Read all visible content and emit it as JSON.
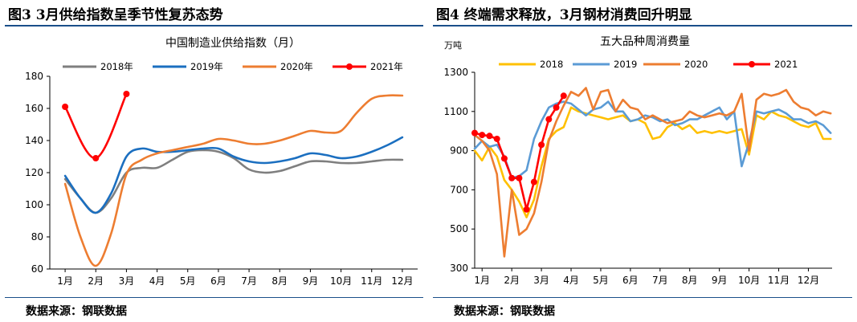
{
  "figures": [
    {
      "title": "图3  3月供给指数呈季节性复苏态势",
      "source": "数据来源：钢联数据"
    },
    {
      "title": "图4  终端需求释放，3月钢材消费回升明显",
      "source": "数据来源：钢联数据"
    }
  ],
  "chart_data": [
    {
      "type": "line",
      "title": "中国制造业供给指数（月）",
      "xlabel": "",
      "ylabel": "",
      "ylim": [
        60,
        180
      ],
      "yticks": [
        60,
        80,
        100,
        120,
        140,
        160,
        180
      ],
      "categories": [
        "1月",
        "2月",
        "3月",
        "4月",
        "5月",
        "6月",
        "7月",
        "8月",
        "9月",
        "10月",
        "11月",
        "12月"
      ],
      "grid": false,
      "legend": "top",
      "series": [
        {
          "name": "2018年",
          "color": "#7f7f7f",
          "markers": false,
          "x": [
            1,
            1.5,
            2,
            2.5,
            3,
            3.5,
            4,
            4.5,
            5,
            5.5,
            6,
            6.5,
            7,
            7.5,
            8,
            8.5,
            9,
            9.5,
            10,
            10.5,
            11,
            11.5,
            12
          ],
          "values": [
            116,
            104,
            95,
            104,
            120,
            123,
            123,
            128,
            133,
            134,
            133,
            129,
            122,
            120,
            121,
            124,
            127,
            127,
            126,
            126,
            127,
            128,
            128
          ]
        },
        {
          "name": "2019年",
          "color": "#1b6fc0",
          "markers": false,
          "x": [
            1,
            1.5,
            2,
            2.5,
            3,
            3.5,
            4,
            4.5,
            5,
            5.5,
            6,
            6.5,
            7,
            7.5,
            8,
            8.5,
            9,
            9.5,
            10,
            10.5,
            11,
            11.5,
            12
          ],
          "values": [
            118,
            104,
            95,
            107,
            130,
            135,
            133,
            133,
            134,
            135,
            135,
            130,
            127,
            126,
            127,
            129,
            132,
            131,
            129,
            130,
            133,
            137,
            142
          ]
        },
        {
          "name": "2020年",
          "color": "#ed7d31",
          "markers": false,
          "x": [
            1,
            1.5,
            2,
            2.5,
            3,
            3.5,
            4,
            4.5,
            5,
            5.5,
            6,
            6.5,
            7,
            7.5,
            8,
            8.5,
            9,
            9.5,
            10,
            10.5,
            11,
            11.5,
            12
          ],
          "values": [
            113,
            80,
            62,
            82,
            119,
            128,
            132,
            134,
            136,
            138,
            141,
            140,
            138,
            138,
            140,
            143,
            146,
            145,
            146,
            157,
            166,
            168,
            168
          ]
        },
        {
          "name": "2021年",
          "color": "#ff0000",
          "markers": true,
          "x": [
            1,
            2,
            3
          ],
          "values": [
            161,
            129,
            169
          ]
        }
      ]
    },
    {
      "type": "line",
      "title": "五大品种周消费量",
      "ylabel": "万吨",
      "xlabel": "",
      "ylim": [
        300,
        1300
      ],
      "yticks": [
        300,
        500,
        700,
        900,
        1100,
        1300
      ],
      "categories": [
        "1月",
        "2月",
        "3月",
        "4月",
        "5月",
        "6月",
        "7月",
        "8月",
        "9月",
        "10月",
        "11月",
        "12月"
      ],
      "grid": false,
      "legend": "top",
      "series": [
        {
          "name": "2018",
          "color": "#ffc000",
          "markers": false,
          "x": [
            1,
            1.25,
            1.5,
            1.75,
            2,
            2.25,
            2.5,
            2.75,
            3,
            3.25,
            3.5,
            3.75,
            4,
            4.25,
            4.5,
            4.75,
            5,
            5.25,
            5.5,
            5.75,
            6,
            6.25,
            6.5,
            6.75,
            7,
            7.25,
            7.5,
            7.75,
            8,
            8.25,
            8.5,
            8.75,
            9,
            9.25,
            9.5,
            9.75,
            10,
            10.25,
            10.5,
            10.75,
            11,
            11.25,
            11.5,
            11.75,
            12,
            12.25,
            12.5,
            12.75,
            13
          ],
          "values": [
            900,
            850,
            920,
            870,
            750,
            700,
            640,
            560,
            650,
            820,
            960,
            1000,
            1020,
            1120,
            1100,
            1090,
            1080,
            1070,
            1060,
            1070,
            1080,
            1050,
            1060,
            1040,
            960,
            970,
            1020,
            1040,
            1010,
            1030,
            990,
            1000,
            990,
            1000,
            990,
            1000,
            1010,
            880,
            1080,
            1060,
            1100,
            1080,
            1070,
            1050,
            1030,
            1020,
            1040,
            960,
            960
          ]
        },
        {
          "name": "2019",
          "color": "#5b9bd5",
          "markers": false,
          "x": [
            1,
            1.25,
            1.5,
            1.75,
            2,
            2.25,
            2.5,
            2.75,
            3,
            3.25,
            3.5,
            3.75,
            4,
            4.25,
            4.5,
            4.75,
            5,
            5.25,
            5.5,
            5.75,
            6,
            6.25,
            6.5,
            6.75,
            7,
            7.25,
            7.5,
            7.75,
            8,
            8.25,
            8.5,
            8.75,
            9,
            9.25,
            9.5,
            9.75,
            10,
            10.25,
            10.5,
            10.75,
            11,
            11.25,
            11.5,
            11.75,
            12,
            12.25,
            12.5,
            12.75,
            13
          ],
          "values": [
            910,
            950,
            920,
            930,
            870,
            760,
            770,
            800,
            960,
            1050,
            1120,
            1140,
            1150,
            1140,
            1110,
            1080,
            1110,
            1120,
            1150,
            1100,
            1100,
            1050,
            1060,
            1080,
            1070,
            1050,
            1060,
            1030,
            1040,
            1060,
            1060,
            1080,
            1100,
            1120,
            1060,
            1100,
            820,
            940,
            1100,
            1090,
            1100,
            1110,
            1090,
            1060,
            1060,
            1040,
            1050,
            1030,
            990
          ]
        },
        {
          "name": "2020",
          "color": "#ed7d31",
          "markers": false,
          "x": [
            1,
            1.25,
            1.5,
            1.75,
            2,
            2.25,
            2.5,
            2.75,
            3,
            3.25,
            3.5,
            3.75,
            4,
            4.25,
            4.5,
            4.75,
            5,
            5.25,
            5.5,
            5.75,
            6,
            6.25,
            6.5,
            6.75,
            7,
            7.25,
            7.5,
            7.75,
            8,
            8.25,
            8.5,
            8.75,
            9,
            9.25,
            9.5,
            9.75,
            10,
            10.25,
            10.5,
            10.75,
            11,
            11.25,
            11.5,
            11.75,
            12,
            12.25,
            12.5,
            12.75,
            13
          ],
          "values": [
            980,
            950,
            900,
            780,
            360,
            700,
            470,
            500,
            580,
            740,
            950,
            1050,
            1130,
            1200,
            1180,
            1220,
            1110,
            1200,
            1210,
            1100,
            1160,
            1120,
            1110,
            1060,
            1080,
            1060,
            1040,
            1050,
            1060,
            1100,
            1080,
            1070,
            1080,
            1090,
            1080,
            1100,
            1190,
            900,
            1160,
            1190,
            1180,
            1190,
            1210,
            1150,
            1120,
            1110,
            1080,
            1100,
            1090
          ]
        },
        {
          "name": "2021",
          "color": "#ff0000",
          "markers": true,
          "x": [
            1,
            1.25,
            1.5,
            1.75,
            2,
            2.25,
            2.5,
            2.75,
            3,
            3.25,
            3.5,
            3.75,
            4
          ],
          "values": [
            990,
            980,
            975,
            960,
            860,
            760,
            760,
            600,
            740,
            930,
            1060,
            1120,
            1180
          ]
        }
      ]
    }
  ]
}
